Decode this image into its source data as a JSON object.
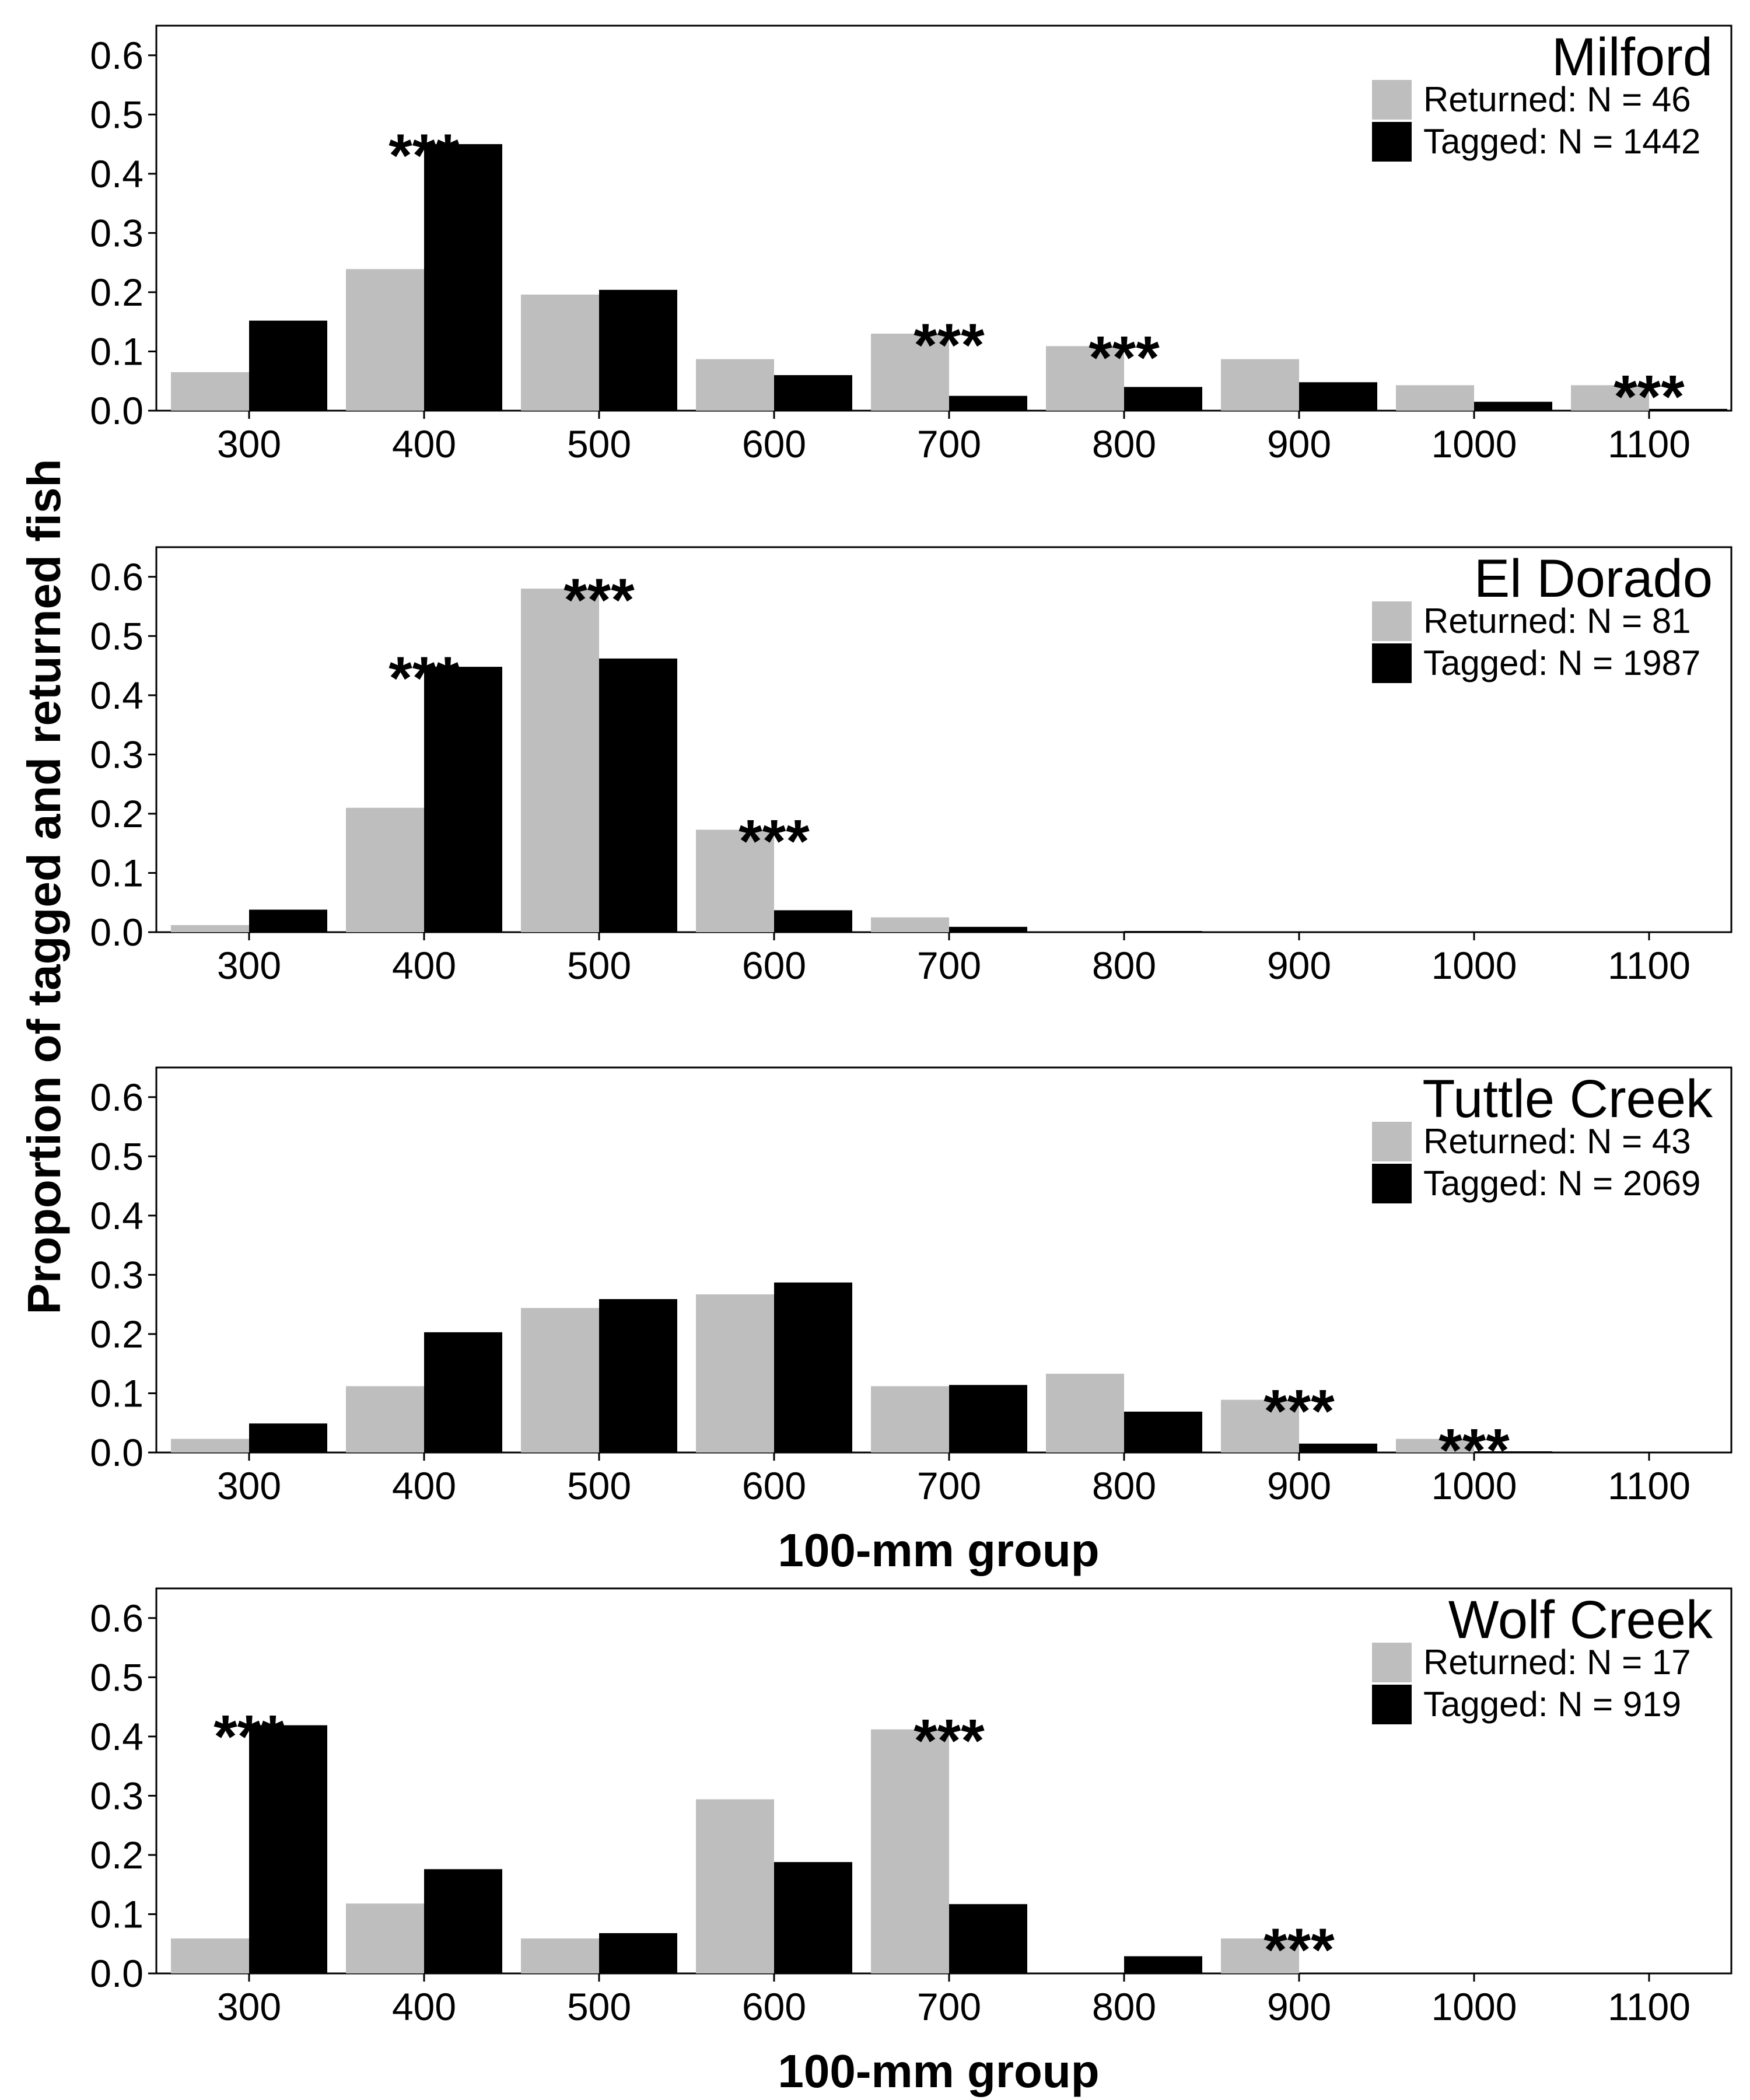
{
  "colors": {
    "returned": "#bebebe",
    "tagged": "#000000",
    "frame": "#000000"
  },
  "ylabel": "Proportion of tagged and returned fish",
  "xlabel": "100-mm group",
  "chart_data": [
    {
      "type": "bar",
      "title": "Milford",
      "categories": [
        "300",
        "400",
        "500",
        "600",
        "700",
        "800",
        "900",
        "1000",
        "1100"
      ],
      "ylim": [
        0,
        0.65
      ],
      "yticks": [
        "0.0",
        "0.1",
        "0.2",
        "0.3",
        "0.4",
        "0.5",
        "0.6"
      ],
      "legend_position": "top-right",
      "xlabel": "",
      "series": [
        {
          "name": "Returned: N = 46",
          "color": "#bebebe",
          "values": [
            0.065,
            0.239,
            0.196,
            0.087,
            0.13,
            0.109,
            0.087,
            0.043,
            0.043
          ]
        },
        {
          "name": "Tagged: N = 1442",
          "color": "#000000",
          "values": [
            0.152,
            0.45,
            0.204,
            0.06,
            0.025,
            0.04,
            0.048,
            0.015,
            0.003
          ]
        }
      ],
      "significance": [
        {
          "category": "400",
          "label": "***"
        },
        {
          "category": "700",
          "label": "***"
        },
        {
          "category": "800",
          "label": "***"
        },
        {
          "category": "1100",
          "label": "***"
        }
      ]
    },
    {
      "type": "bar",
      "title": "El Dorado",
      "categories": [
        "300",
        "400",
        "500",
        "600",
        "700",
        "800",
        "900",
        "1000",
        "1100"
      ],
      "ylim": [
        0,
        0.65
      ],
      "yticks": [
        "0.0",
        "0.1",
        "0.2",
        "0.3",
        "0.4",
        "0.5",
        "0.6"
      ],
      "legend_position": "top-right",
      "xlabel": "",
      "series": [
        {
          "name": "Returned: N = 81",
          "color": "#bebebe",
          "values": [
            0.012,
            0.21,
            0.58,
            0.173,
            0.025,
            0.0,
            0.0,
            0.0,
            0.0
          ]
        },
        {
          "name": "Tagged: N = 1987",
          "color": "#000000",
          "values": [
            0.038,
            0.448,
            0.462,
            0.037,
            0.009,
            0.002,
            0.001,
            0.0,
            0.0
          ]
        }
      ],
      "significance": [
        {
          "category": "400",
          "label": "***"
        },
        {
          "category": "500",
          "label": "***"
        },
        {
          "category": "600",
          "label": "***"
        }
      ]
    },
    {
      "type": "bar",
      "title": "Tuttle Creek",
      "categories": [
        "300",
        "400",
        "500",
        "600",
        "700",
        "800",
        "900",
        "1000",
        "1100"
      ],
      "ylim": [
        0,
        0.65
      ],
      "yticks": [
        "0.0",
        "0.1",
        "0.2",
        "0.3",
        "0.4",
        "0.5",
        "0.6"
      ],
      "legend_position": "top-right",
      "xlabel": "100-mm group",
      "series": [
        {
          "name": "Returned: N = 43",
          "color": "#bebebe",
          "values": [
            0.023,
            0.112,
            0.244,
            0.267,
            0.112,
            0.133,
            0.089,
            0.023,
            0.0
          ]
        },
        {
          "name": "Tagged: N = 2069",
          "color": "#000000",
          "values": [
            0.049,
            0.203,
            0.259,
            0.287,
            0.114,
            0.069,
            0.015,
            0.002,
            0.0
          ]
        }
      ],
      "significance": [
        {
          "category": "900",
          "label": "***"
        },
        {
          "category": "1000",
          "label": "***"
        }
      ]
    },
    {
      "type": "bar",
      "title": "Wolf Creek",
      "categories": [
        "300",
        "400",
        "500",
        "600",
        "700",
        "800",
        "900",
        "1000",
        "1100"
      ],
      "ylim": [
        0,
        0.65
      ],
      "yticks": [
        "0.0",
        "0.1",
        "0.2",
        "0.3",
        "0.4",
        "0.5",
        "0.6"
      ],
      "legend_position": "top-right",
      "xlabel": "100-mm group",
      "series": [
        {
          "name": "Returned: N = 17",
          "color": "#bebebe",
          "values": [
            0.059,
            0.118,
            0.059,
            0.294,
            0.412,
            0.0,
            0.059,
            0.0,
            0.0
          ]
        },
        {
          "name": "Tagged: N = 919",
          "color": "#000000",
          "values": [
            0.419,
            0.176,
            0.068,
            0.188,
            0.117,
            0.029,
            0.001,
            0.0,
            0.0
          ]
        }
      ],
      "significance": [
        {
          "category": "300",
          "label": "***"
        },
        {
          "category": "700",
          "label": "***"
        },
        {
          "category": "900",
          "label": "***"
        }
      ]
    }
  ]
}
